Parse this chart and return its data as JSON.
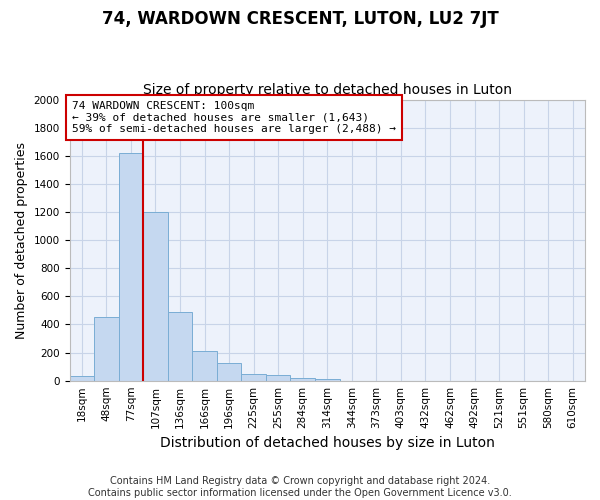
{
  "title": "74, WARDOWN CRESCENT, LUTON, LU2 7JT",
  "subtitle": "Size of property relative to detached houses in Luton",
  "xlabel": "Distribution of detached houses by size in Luton",
  "ylabel": "Number of detached properties",
  "footer_line1": "Contains HM Land Registry data © Crown copyright and database right 2024.",
  "footer_line2": "Contains public sector information licensed under the Open Government Licence v3.0.",
  "categories": [
    "18sqm",
    "48sqm",
    "77sqm",
    "107sqm",
    "136sqm",
    "166sqm",
    "196sqm",
    "225sqm",
    "255sqm",
    "284sqm",
    "314sqm",
    "344sqm",
    "373sqm",
    "403sqm",
    "432sqm",
    "462sqm",
    "492sqm",
    "521sqm",
    "551sqm",
    "580sqm",
    "610sqm"
  ],
  "values": [
    35,
    450,
    1620,
    1200,
    490,
    210,
    125,
    50,
    40,
    20,
    15,
    0,
    0,
    0,
    0,
    0,
    0,
    0,
    0,
    0,
    0
  ],
  "bar_color": "#c5d8f0",
  "bar_edge_color": "#7aadd4",
  "property_line_x": 2.5,
  "property_line_color": "#cc0000",
  "annotation_text": "74 WARDOWN CRESCENT: 100sqm\n← 39% of detached houses are smaller (1,643)\n59% of semi-detached houses are larger (2,488) →",
  "annotation_box_color": "#cc0000",
  "ylim": [
    0,
    2000
  ],
  "yticks": [
    0,
    200,
    400,
    600,
    800,
    1000,
    1200,
    1400,
    1600,
    1800,
    2000
  ],
  "grid_color": "#c8d4e8",
  "bg_color": "#edf2fb",
  "title_fontsize": 12,
  "subtitle_fontsize": 10,
  "ylabel_fontsize": 9,
  "xlabel_fontsize": 10,
  "tick_fontsize": 7.5,
  "annot_fontsize": 8,
  "footer_fontsize": 7
}
